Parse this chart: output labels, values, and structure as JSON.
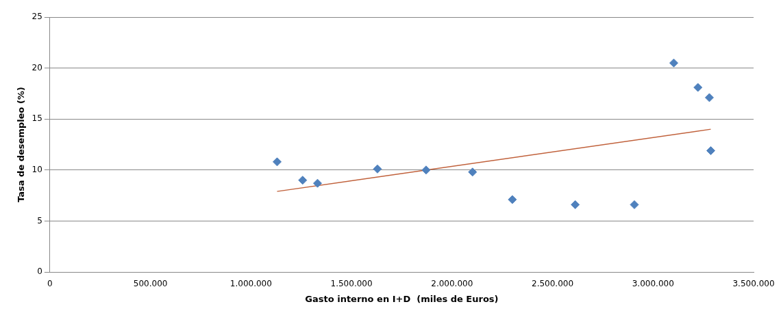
{
  "chart_data": {
    "type": "scatter",
    "xlabel": "Gasto interno en I+D  (miles de Euros)",
    "ylabel": "Tasa de desempleo (%)",
    "xlim": [
      0,
      3500000
    ],
    "xticks": [
      0,
      {
        "value": 500000,
        "label": "500.000"
      },
      {
        "value": 1000000,
        "label": "1.000.000"
      },
      {
        "value": 1500000,
        "label": "1.500.000"
      },
      {
        "value": 2000000,
        "label": "2.000.000"
      },
      {
        "value": 2500000,
        "label": "2.500.000"
      },
      {
        "value": 3000000,
        "label": "3.000.000"
      },
      {
        "value": 3500000,
        "label": "3.500.000"
      }
    ],
    "ylim": [
      0,
      25
    ],
    "yticks": [
      0,
      5,
      10,
      15,
      20,
      25
    ],
    "grid": "y",
    "marker": "diamond",
    "legend": false,
    "series": [
      {
        "type": "scatter",
        "color": "#4f81bd",
        "x": [
          1130000,
          1257000,
          1331000,
          1629000,
          1871000,
          2102000,
          2300000,
          2613000,
          2907000,
          3103000,
          3223000,
          3280000,
          3287000
        ],
        "values": [
          10.8,
          9.0,
          8.7,
          10.1,
          10.0,
          9.8,
          7.1,
          6.6,
          6.6,
          20.5,
          18.1,
          17.1,
          11.9
        ]
      },
      {
        "type": "line",
        "marker": "none",
        "color": "#c0603a",
        "x": [
          1130000,
          3287000
        ],
        "values": [
          7.9,
          14.0
        ]
      }
    ]
  }
}
